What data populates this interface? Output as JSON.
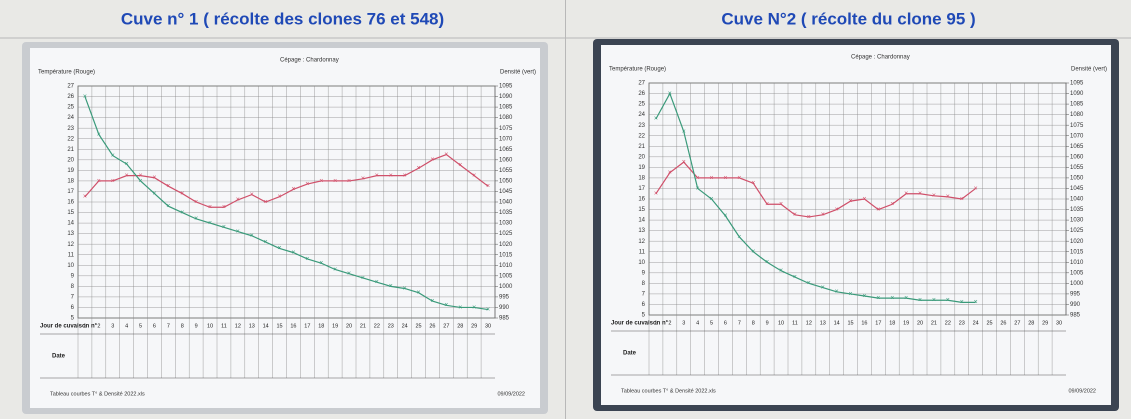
{
  "chart_data": [
    {
      "type": "line",
      "title": "Cuve n° 1 ( récolte des clones 76 et 548)",
      "subtitle": "Cépage : Chardonnay",
      "ylabel": "Température (Rouge)",
      "y2label": "Densité (vert)",
      "xlabel": "Jour de cuvaison n°",
      "date_label": "Date",
      "footer": "Tableau courbes T° & Densité 2022.xls",
      "print_date": "09/09/2022",
      "categories": [
        1,
        2,
        3,
        4,
        5,
        6,
        7,
        8,
        9,
        10,
        11,
        12,
        13,
        14,
        15,
        16,
        17,
        18,
        19,
        20,
        21,
        22,
        23,
        24,
        25,
        26,
        27,
        28,
        29,
        30
      ],
      "ylim": [
        5,
        27
      ],
      "yticks": [
        5,
        6,
        7,
        8,
        9,
        10,
        11,
        12,
        13,
        14,
        15,
        16,
        17,
        18,
        19,
        20,
        21,
        22,
        23,
        24,
        25,
        26,
        27
      ],
      "y2lim": [
        985,
        1095
      ],
      "y2ticks": [
        985,
        990,
        995,
        1000,
        1005,
        1010,
        1015,
        1020,
        1025,
        1030,
        1035,
        1040,
        1045,
        1050,
        1055,
        1060,
        1065,
        1070,
        1075,
        1080,
        1085,
        1090,
        1095
      ],
      "grid": true,
      "series": [
        {
          "color": "#d0506a",
          "values": [
            16.5,
            18,
            18,
            18.5,
            18.5,
            18.3,
            17.5,
            16.8,
            16,
            15.5,
            15.5,
            16.2,
            16.7,
            16,
            16.5,
            17.2,
            17.7,
            18,
            18,
            18,
            18.2,
            18.5,
            18.5,
            18.5,
            19.2,
            20,
            20.5,
            19.5,
            18.5,
            17.5
          ]
        },
        {
          "color": "#3a9a7a",
          "axis": "y2",
          "values": [
            1090,
            1072,
            1062,
            1058,
            1050,
            1044,
            1038,
            1035,
            1032,
            1030,
            1028,
            1026,
            1024,
            1021,
            1018,
            1016,
            1013,
            1011,
            1008,
            1006,
            1004,
            1002,
            1000,
            999,
            997,
            993,
            991,
            990,
            990,
            989
          ]
        }
      ]
    },
    {
      "type": "line",
      "title": "Cuve N°2 ( récolte du clone 95 )",
      "subtitle": "Cépage : Chardonnay",
      "ylabel": "Température (Rouge)",
      "y2label": "Densité (vert)",
      "xlabel": "Jour de cuvaison n°",
      "date_label": "Date",
      "footer": "Tableau courbes T° & Densité 2022.xls",
      "print_date": "09/09/2022",
      "categories": [
        1,
        2,
        3,
        4,
        5,
        6,
        7,
        8,
        9,
        10,
        11,
        12,
        13,
        14,
        15,
        16,
        17,
        18,
        19,
        20,
        21,
        22,
        23,
        24,
        25,
        26,
        27,
        28,
        29,
        30
      ],
      "ylim": [
        5,
        27
      ],
      "yticks": [
        5,
        6,
        7,
        8,
        9,
        10,
        11,
        12,
        13,
        14,
        15,
        16,
        17,
        18,
        19,
        20,
        21,
        22,
        23,
        24,
        25,
        26,
        27
      ],
      "y2lim": [
        985,
        1095
      ],
      "y2ticks": [
        985,
        990,
        995,
        1000,
        1005,
        1010,
        1015,
        1020,
        1025,
        1030,
        1035,
        1040,
        1045,
        1050,
        1055,
        1060,
        1065,
        1070,
        1075,
        1080,
        1085,
        1090,
        1095
      ],
      "grid": true,
      "series": [
        {
          "color": "#d0506a",
          "values": [
            16.5,
            18.5,
            19.5,
            18,
            18,
            18,
            18,
            17.5,
            15.5,
            15.5,
            14.5,
            14.3,
            14.5,
            15,
            15.8,
            16,
            15,
            15.5,
            16.5,
            16.5,
            16.3,
            16.2,
            16,
            17,
            null,
            null,
            null,
            null,
            null,
            null
          ]
        },
        {
          "color": "#3a9a7a",
          "values": [
            1078,
            1090,
            1072,
            1045,
            1040,
            1032,
            1022,
            1015,
            1010,
            1006,
            1003,
            1000,
            998,
            996,
            995,
            994,
            993,
            993,
            993,
            992,
            992,
            992,
            991,
            991,
            null,
            null,
            null,
            null,
            null,
            null
          ],
          "axis": "y2"
        }
      ]
    }
  ]
}
